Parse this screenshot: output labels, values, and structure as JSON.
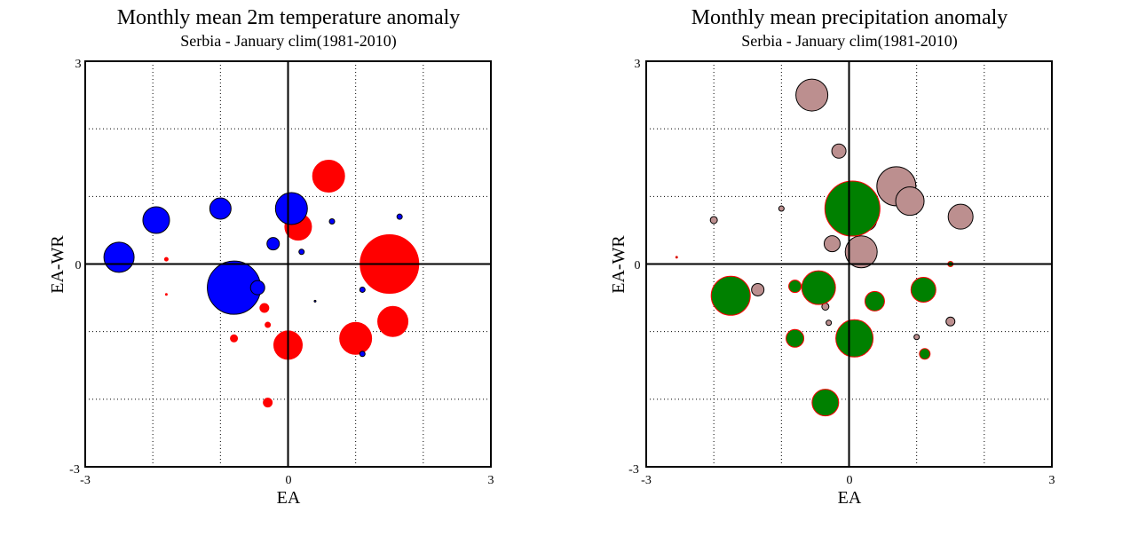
{
  "colors": {
    "positive_temp": "#ff0000",
    "negative_temp": "#0000ff",
    "positive_precip": "#bc8f8f",
    "negative_precip": "#008000",
    "negative_precip_outline": "#ff0000"
  },
  "chart_data": [
    {
      "type": "scatter",
      "title": "Monthly mean 2m temperature anomaly",
      "subtitle": "Serbia - January  clim(1981-2010)",
      "xlabel": "EA",
      "ylabel": "EA-WR",
      "xlim": [
        -3,
        3
      ],
      "ylim": [
        -3,
        3
      ],
      "x_ticks": [
        "-3",
        "0",
        "3"
      ],
      "y_ticks": [
        "-3",
        "0",
        "3"
      ],
      "grid": true,
      "encoding": "bubble size = anomaly magnitude; red = positive, blue = negative",
      "series": [
        {
          "name": "positive",
          "points": [
            {
              "x": 1.5,
              "y": 0.0,
              "r": 33
            },
            {
              "x": 0.6,
              "y": 1.3,
              "r": 18
            },
            {
              "x": 0.15,
              "y": 0.55,
              "r": 15
            },
            {
              "x": 1.55,
              "y": -0.85,
              "r": 17
            },
            {
              "x": 1.0,
              "y": -1.1,
              "r": 18
            },
            {
              "x": 0.0,
              "y": -1.2,
              "r": 16
            },
            {
              "x": -0.35,
              "y": -0.65,
              "r": 5
            },
            {
              "x": -0.3,
              "y": -0.9,
              "r": 3
            },
            {
              "x": -0.8,
              "y": -1.1,
              "r": 4
            },
            {
              "x": -0.3,
              "y": -2.05,
              "r": 5
            },
            {
              "x": -1.8,
              "y": 0.07,
              "r": 2
            },
            {
              "x": -1.8,
              "y": -0.45,
              "r": 1
            }
          ]
        },
        {
          "name": "negative",
          "points": [
            {
              "x": -0.8,
              "y": -0.35,
              "r": 30
            },
            {
              "x": 0.05,
              "y": 0.82,
              "r": 18
            },
            {
              "x": -2.5,
              "y": 0.1,
              "r": 17
            },
            {
              "x": -1.95,
              "y": 0.65,
              "r": 15
            },
            {
              "x": -1.0,
              "y": 0.82,
              "r": 12
            },
            {
              "x": -0.22,
              "y": 0.3,
              "r": 7
            },
            {
              "x": -0.45,
              "y": -0.35,
              "r": 8
            },
            {
              "x": 0.65,
              "y": 0.63,
              "r": 3
            },
            {
              "x": 1.65,
              "y": 0.7,
              "r": 3
            },
            {
              "x": 0.2,
              "y": 0.18,
              "r": 3
            },
            {
              "x": 1.1,
              "y": -0.38,
              "r": 3
            },
            {
              "x": 1.1,
              "y": -1.33,
              "r": 3
            },
            {
              "x": 0.4,
              "y": -0.55,
              "r": 1
            }
          ]
        }
      ]
    },
    {
      "type": "scatter",
      "title": "Monthly mean precipitation anomaly",
      "subtitle": "Serbia - January  clim(1981-2010)",
      "xlabel": "EA",
      "ylabel": "EA-WR",
      "xlim": [
        -3,
        3
      ],
      "ylim": [
        -3,
        3
      ],
      "x_ticks": [
        "-3",
        "0",
        "3"
      ],
      "y_ticks": [
        "-3",
        "0",
        "3"
      ],
      "grid": true,
      "encoding": "bubble size = anomaly magnitude; rosy brown = positive, green = negative",
      "series": [
        {
          "name": "positive",
          "points": [
            {
              "x": -0.55,
              "y": 2.5,
              "r": 18
            },
            {
              "x": -0.15,
              "y": 1.67,
              "r": 8
            },
            {
              "x": 0.7,
              "y": 1.15,
              "r": 22
            },
            {
              "x": 0.9,
              "y": 0.93,
              "r": 16
            },
            {
              "x": 1.65,
              "y": 0.7,
              "r": 14
            },
            {
              "x": 0.25,
              "y": 0.65,
              "r": 12
            },
            {
              "x": 0.18,
              "y": 0.18,
              "r": 18
            },
            {
              "x": -0.25,
              "y": 0.3,
              "r": 9
            },
            {
              "x": -1.35,
              "y": -0.38,
              "r": 7
            },
            {
              "x": -1.0,
              "y": 0.82,
              "r": 3
            },
            {
              "x": -2.0,
              "y": 0.65,
              "r": 4
            },
            {
              "x": -0.35,
              "y": -0.63,
              "r": 4
            },
            {
              "x": -0.3,
              "y": -0.87,
              "r": 3
            },
            {
              "x": 1.0,
              "y": -1.08,
              "r": 3
            },
            {
              "x": 1.5,
              "y": -0.85,
              "r": 5
            },
            {
              "x": 0.1,
              "y": 0.55,
              "r": 7
            }
          ]
        },
        {
          "name": "negative",
          "points": [
            {
              "x": 0.05,
              "y": 0.82,
              "r": 31
            },
            {
              "x": -1.75,
              "y": -0.47,
              "r": 22
            },
            {
              "x": -0.45,
              "y": -0.35,
              "r": 19
            },
            {
              "x": 0.08,
              "y": -1.1,
              "r": 21
            },
            {
              "x": -0.35,
              "y": -2.05,
              "r": 15
            },
            {
              "x": 1.1,
              "y": -0.38,
              "r": 14
            },
            {
              "x": 0.38,
              "y": -0.55,
              "r": 11
            },
            {
              "x": -0.8,
              "y": -1.1,
              "r": 10
            },
            {
              "x": -0.8,
              "y": -0.33,
              "r": 7
            },
            {
              "x": 1.12,
              "y": -1.33,
              "r": 6
            },
            {
              "x": 1.5,
              "y": 0.0,
              "r": 3
            },
            {
              "x": -2.55,
              "y": 0.1,
              "r": 1
            }
          ]
        }
      ]
    }
  ]
}
